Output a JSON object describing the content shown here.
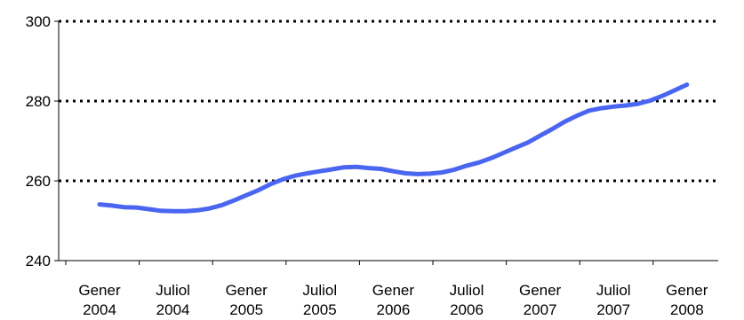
{
  "chart_data": {
    "type": "line",
    "categories": [
      [
        "Gener",
        "2004"
      ],
      [
        "Juliol",
        "2004"
      ],
      [
        "Gener",
        "2005"
      ],
      [
        "Juliol",
        "2005"
      ],
      [
        "Gener",
        "2006"
      ],
      [
        "Juliol",
        "2006"
      ],
      [
        "Gener",
        "2007"
      ],
      [
        "Juliol",
        "2007"
      ],
      [
        "Gener",
        "2008"
      ]
    ],
    "y_ticks": [
      "240",
      "260",
      "280",
      "300"
    ],
    "ylim": [
      240,
      300
    ],
    "grid": true,
    "legend": "none",
    "series": [
      {
        "color": "#4a66f0",
        "x": [
          0.0,
          0.167,
          0.333,
          0.5,
          0.667,
          0.833,
          1.0,
          1.167,
          1.333,
          1.5,
          1.667,
          1.833,
          2.0,
          2.167,
          2.333,
          2.5,
          2.667,
          2.833,
          3.0,
          3.167,
          3.333,
          3.5,
          3.667,
          3.833,
          4.0,
          4.167,
          4.333,
          4.5,
          4.667,
          4.833,
          5.0,
          5.167,
          5.333,
          5.5,
          5.667,
          5.833,
          6.0,
          6.167,
          6.333,
          6.5,
          6.667,
          6.833,
          7.0,
          7.167,
          7.333,
          7.5,
          7.667,
          7.833,
          8.0
        ],
        "y": [
          254.1,
          253.8,
          253.4,
          253.3,
          252.9,
          252.5,
          252.4,
          252.4,
          252.6,
          253.1,
          253.9,
          255.1,
          256.4,
          257.7,
          259.2,
          260.4,
          261.3,
          261.9,
          262.4,
          262.9,
          263.4,
          263.5,
          263.2,
          263.0,
          262.4,
          261.9,
          261.7,
          261.8,
          262.1,
          262.8,
          263.8,
          264.6,
          265.7,
          267.0,
          268.3,
          269.6,
          271.3,
          273.0,
          274.8,
          276.3,
          277.6,
          278.2,
          278.6,
          278.9,
          279.3,
          280.1,
          281.3,
          282.7,
          284.1
        ]
      }
    ]
  }
}
